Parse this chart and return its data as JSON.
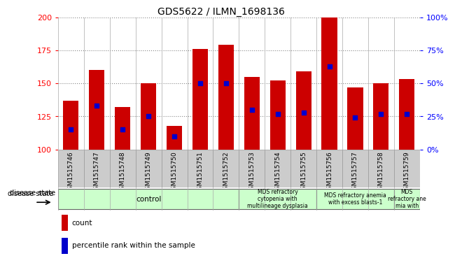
{
  "title": "GDS5622 / ILMN_1698136",
  "samples": [
    "GSM1515746",
    "GSM1515747",
    "GSM1515748",
    "GSM1515749",
    "GSM1515750",
    "GSM1515751",
    "GSM1515752",
    "GSM1515753",
    "GSM1515754",
    "GSM1515755",
    "GSM1515756",
    "GSM1515757",
    "GSM1515758",
    "GSM1515759"
  ],
  "counts": [
    137,
    160,
    132,
    150,
    118,
    176,
    179,
    155,
    152,
    159,
    200,
    147,
    150,
    153
  ],
  "percentile_ranks": [
    15,
    33,
    15,
    25,
    10,
    50,
    50,
    30,
    27,
    28,
    63,
    24,
    27,
    27
  ],
  "ylim_left": [
    100,
    200
  ],
  "ylim_right": [
    0,
    100
  ],
  "yticks_left": [
    100,
    125,
    150,
    175,
    200
  ],
  "yticks_right": [
    0,
    25,
    50,
    75,
    100
  ],
  "bar_color": "#cc0000",
  "dot_color": "#0000cc",
  "bar_width": 0.6,
  "grid_color": "#888888",
  "xticklabel_bg": "#cccccc",
  "disease_box_color": "#ccffcc",
  "disease_box_edge": "#666666",
  "disease_groups": [
    {
      "label": "control",
      "start": 0,
      "end": 7
    },
    {
      "label": "MDS refractory\ncytopenia with\nmultilineage dysplasia",
      "start": 7,
      "end": 10
    },
    {
      "label": "MDS refractory anemia\nwith excess blasts-1",
      "start": 10,
      "end": 13
    },
    {
      "label": "MDS\nrefractory ane\nmia with",
      "start": 13,
      "end": 14
    }
  ],
  "legend_count_label": "count",
  "legend_percentile_label": "percentile rank within the sample",
  "disease_state_label": "disease state"
}
